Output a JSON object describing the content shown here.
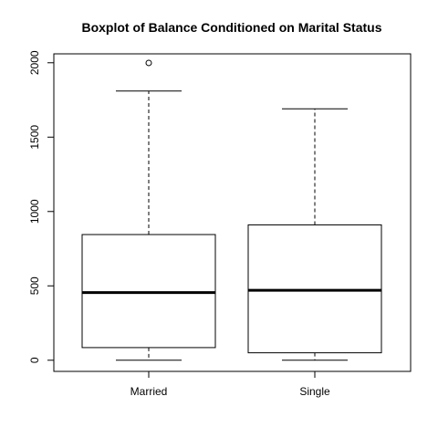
{
  "chart_data": {
    "type": "boxplot",
    "title": "Boxplot of Balance Conditioned on Marital Status",
    "xlabel": "",
    "ylabel": "",
    "ylim": [
      -75,
      2060
    ],
    "yticks": [
      0,
      500,
      1000,
      1500,
      2000
    ],
    "categories": [
      "Married",
      "Single"
    ],
    "boxes": [
      {
        "category": "Married",
        "whisker_low": 0,
        "q1": 85,
        "median": 455,
        "q3": 845,
        "whisker_high": 1810,
        "outliers": [
          1999
        ]
      },
      {
        "category": "Single",
        "whisker_low": 0,
        "q1": 50,
        "median": 470,
        "q3": 910,
        "whisker_high": 1690,
        "outliers": []
      }
    ],
    "grid": false,
    "legend": "none"
  }
}
